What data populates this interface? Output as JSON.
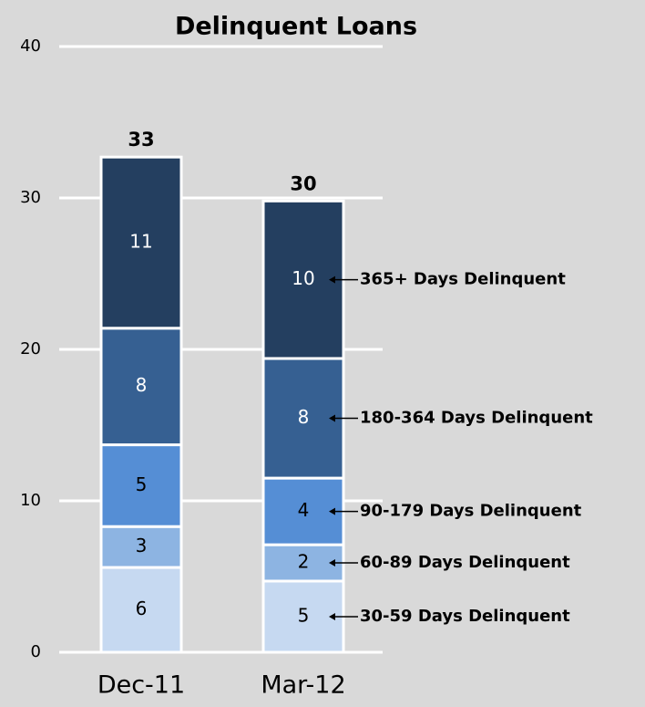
{
  "chart_data": {
    "type": "stacked_bar",
    "title": "Delinquent Loans",
    "categories": [
      "Dec-11",
      "Mar-12"
    ],
    "series": [
      {
        "name": "30-59 Days Delinquent",
        "color": "#c6d9f1",
        "values": [
          5.6,
          4.7
        ],
        "value_labels": [
          "6",
          "5"
        ]
      },
      {
        "name": "60-89 Days Delinquent",
        "color": "#8db4e2",
        "values": [
          2.7,
          2.4
        ],
        "value_labels": [
          "3",
          "2"
        ]
      },
      {
        "name": "90-179 Days Delinquent",
        "color": "#558ed5",
        "values": [
          5.4,
          4.4
        ],
        "value_labels": [
          "5",
          "4"
        ]
      },
      {
        "name": "180-364 Days Delinquent",
        "color": "#366092",
        "values": [
          7.7,
          7.9
        ],
        "value_labels": [
          "8",
          "8"
        ]
      },
      {
        "name": "365+ Days Delinquent",
        "color": "#243f60",
        "values": [
          11.3,
          10.4
        ],
        "value_labels": [
          "11",
          "10"
        ]
      }
    ],
    "totals": [
      32.7,
      29.8
    ],
    "total_labels": [
      "33",
      "30"
    ],
    "ylim": [
      0,
      40
    ],
    "yticks": [
      0,
      10,
      20,
      30,
      40
    ],
    "grid": true
  }
}
